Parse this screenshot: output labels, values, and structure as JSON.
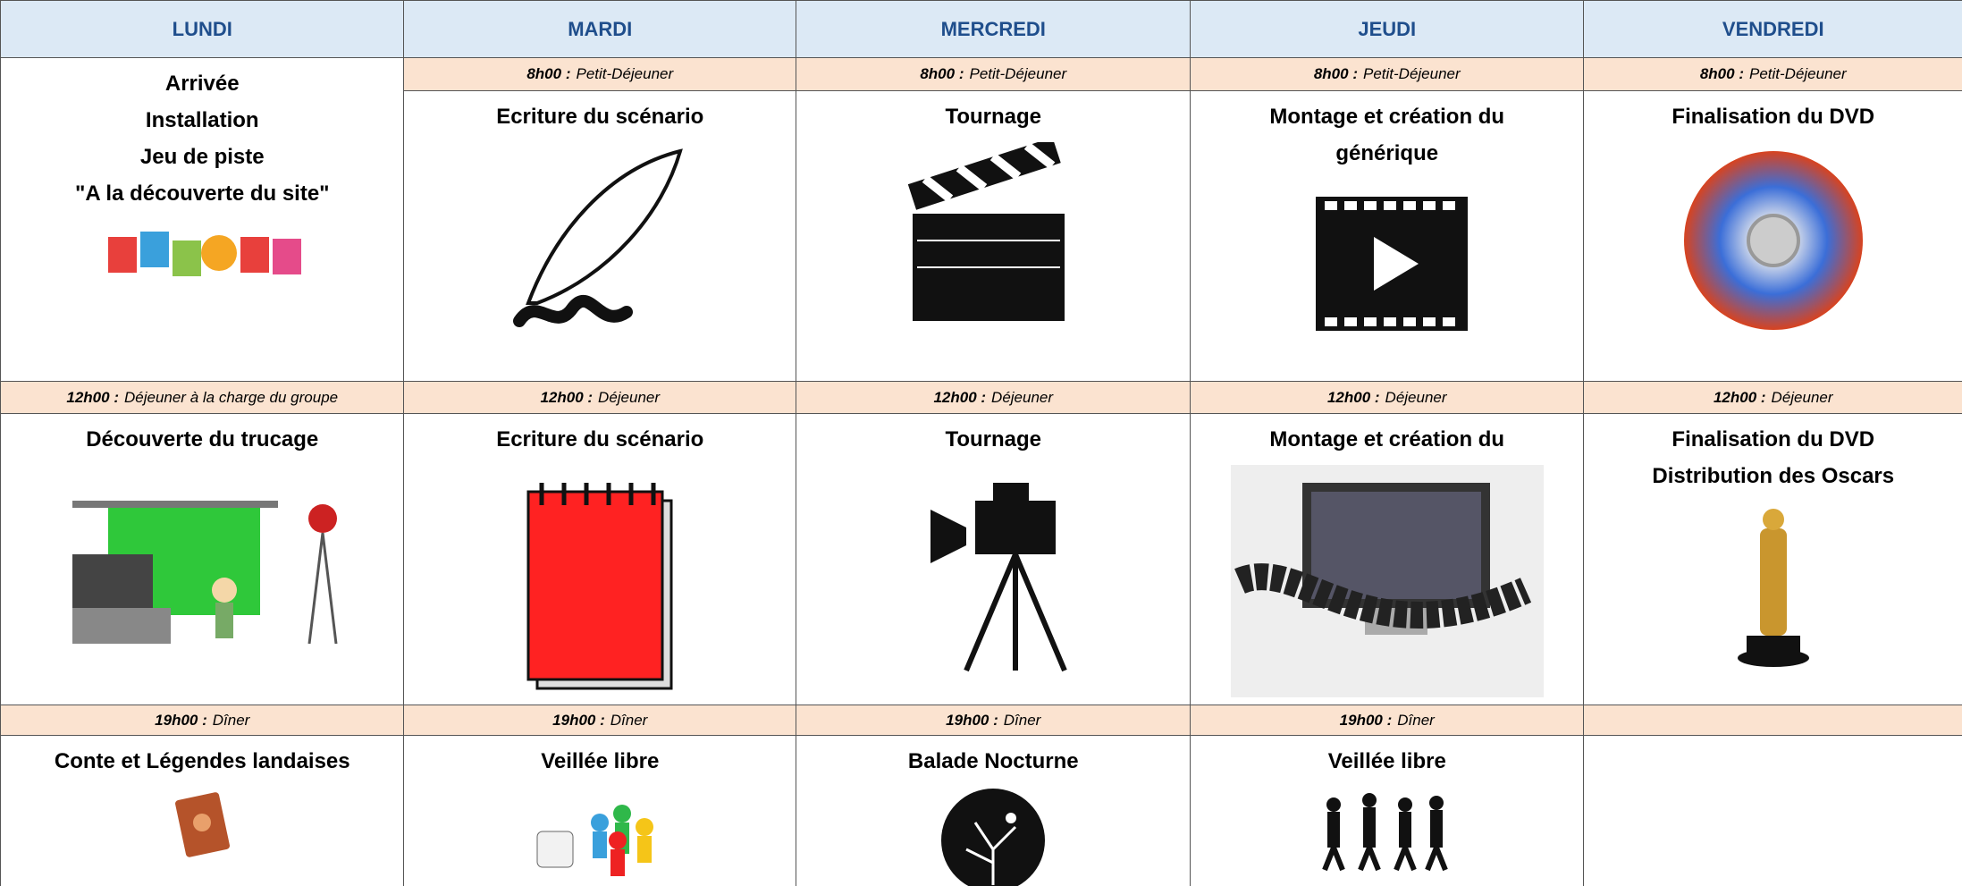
{
  "days": [
    {
      "name": "LUNDI",
      "morning": [
        "Arrivée",
        "Installation",
        "Jeu de piste",
        "\"A la découverte du site\""
      ],
      "lunch": {
        "time": "12h00 :",
        "label": "Déjeuner à la charge du groupe"
      },
      "afternoon": [
        "Découverte du trucage"
      ],
      "dinner": {
        "time": "19h00 :",
        "label": "Dîner"
      },
      "evening": [
        "Conte et Légendes landaises"
      ]
    },
    {
      "name": "MARDI",
      "breakfast": {
        "time": "8h00 :",
        "label": "Petit-Déjeuner"
      },
      "morning": [
        "Ecriture du scénario"
      ],
      "lunch": {
        "time": "12h00 :",
        "label": "Déjeuner"
      },
      "afternoon": [
        "Ecriture du scénario"
      ],
      "dinner": {
        "time": "19h00 :",
        "label": "Dîner"
      },
      "evening": [
        "Veillée libre"
      ]
    },
    {
      "name": "MERCREDI",
      "breakfast": {
        "time": "8h00 :",
        "label": "Petit-Déjeuner"
      },
      "morning": [
        "Tournage"
      ],
      "lunch": {
        "time": "12h00 :",
        "label": "Déjeuner"
      },
      "afternoon": [
        "Tournage"
      ],
      "dinner": {
        "time": "19h00 :",
        "label": "Dîner"
      },
      "evening": [
        "Balade Nocturne"
      ]
    },
    {
      "name": "JEUDI",
      "breakfast": {
        "time": "8h00 :",
        "label": "Petit-Déjeuner"
      },
      "morning": [
        "Montage et création du",
        "générique"
      ],
      "lunch": {
        "time": "12h00 :",
        "label": "Déjeuner"
      },
      "afternoon": [
        "Montage et création du"
      ],
      "dinner": {
        "time": "19h00 :",
        "label": "Dîner"
      },
      "evening": [
        "Veillée libre"
      ]
    },
    {
      "name": "VENDREDI",
      "breakfast": {
        "time": "8h00 :",
        "label": "Petit-Déjeuner"
      },
      "morning": [
        "Finalisation du DVD"
      ],
      "lunch": {
        "time": "12h00 :",
        "label": "Déjeuner"
      },
      "afternoon": [
        "Finalisation du DVD",
        "Distribution des Oscars"
      ]
    }
  ]
}
